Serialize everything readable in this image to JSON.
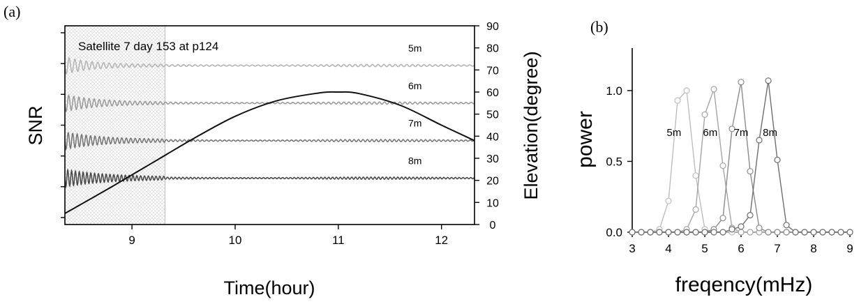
{
  "chart_data": [
    {
      "panel_label": "(a)",
      "type": "line",
      "annotation": "Satellite 7 day 153 at p124",
      "xlabel": "Time(hour)",
      "ylabel_left": "SNR",
      "ylabel_right": "Elevation(degree)",
      "xlim": [
        8.35,
        12.32
      ],
      "x_ticks": [
        9,
        10,
        11,
        12
      ],
      "ylim_right": [
        0,
        90
      ],
      "y_ticks_right": [
        0,
        10,
        20,
        30,
        40,
        50,
        60,
        70,
        80,
        90
      ],
      "shaded_interval": [
        8.35,
        9.32
      ],
      "elevation_curve": {
        "x": [
          8.35,
          8.8,
          9.2,
          9.6,
          10.0,
          10.4,
          10.8,
          11.0,
          11.2,
          11.6,
          12.0,
          12.32
        ],
        "y": [
          5,
          17,
          28,
          39,
          49,
          56,
          59.5,
          60,
          59.3,
          54,
          45,
          38
        ]
      },
      "series": [
        {
          "name": "5m",
          "baseline": 72,
          "color": "#b4b4b4",
          "freq_mHz": 4.4
        },
        {
          "name": "6m",
          "baseline": 55,
          "color": "#9a9a9a",
          "freq_mHz": 5.2
        },
        {
          "name": "7m",
          "baseline": 38,
          "color": "#777777",
          "freq_mHz": 6.1
        },
        {
          "name": "8m",
          "baseline": 21,
          "color": "#4a4a4a",
          "freq_mHz": 6.9
        }
      ]
    },
    {
      "panel_label": "(b)",
      "type": "line",
      "xlabel": "freqency(mHz)",
      "ylabel": "power",
      "xlim": [
        3,
        9
      ],
      "ylim": [
        0,
        1.3
      ],
      "x_ticks": [
        3,
        4,
        5,
        6,
        7,
        8,
        9
      ],
      "y_ticks": [
        "0.0",
        "0.5",
        "1.0"
      ],
      "x": [
        3.0,
        3.25,
        3.5,
        3.75,
        4.0,
        4.25,
        4.5,
        4.75,
        5.0,
        5.25,
        5.5,
        5.75,
        6.0,
        6.25,
        6.5,
        6.75,
        7.0,
        7.25,
        7.5,
        7.75,
        8.0,
        8.25,
        8.5,
        8.75,
        9.0
      ],
      "series": [
        {
          "name": "5m",
          "color": "#bdbdbd",
          "values": [
            0,
            0,
            0,
            0.02,
            0.22,
            0.93,
            1.0,
            0.4,
            0.02,
            0,
            0,
            0,
            0,
            0,
            0,
            0,
            0,
            0,
            0,
            0,
            0,
            0,
            0,
            0,
            0
          ]
        },
        {
          "name": "6m",
          "color": "#a5a5a5",
          "values": [
            0,
            0,
            0,
            0,
            0,
            0,
            0.02,
            0.16,
            0.83,
            1.01,
            0.47,
            0.03,
            0,
            0,
            0,
            0,
            0,
            0,
            0,
            0,
            0,
            0,
            0,
            0,
            0
          ]
        },
        {
          "name": "7m",
          "color": "#8a8a8a",
          "values": [
            0,
            0,
            0,
            0,
            0,
            0,
            0,
            0,
            0,
            0.02,
            0.1,
            0.73,
            1.06,
            0.43,
            0.03,
            0,
            0,
            0,
            0,
            0,
            0,
            0,
            0,
            0,
            0
          ]
        },
        {
          "name": "8m",
          "color": "#6e6e6e",
          "values": [
            0,
            0,
            0,
            0,
            0,
            0,
            0,
            0,
            0,
            0,
            0,
            0.02,
            0.04,
            0.12,
            0.65,
            1.07,
            0.51,
            0.05,
            0,
            0,
            0,
            0,
            0,
            0,
            0
          ]
        }
      ]
    }
  ]
}
